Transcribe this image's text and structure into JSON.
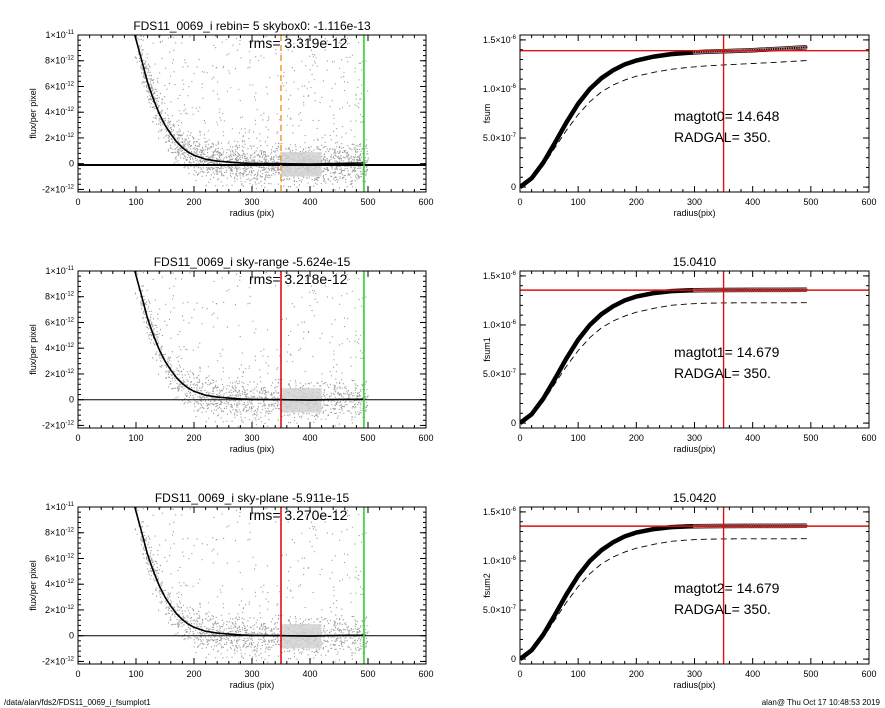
{
  "footer": {
    "left": "/data/alan/fds2/FDS11_0069_i_fsumplot1",
    "right": "alan@  Thu Oct 17 10:48:53 2019"
  },
  "colors": {
    "scatter": "#9a9a9a",
    "profile": "#000000",
    "orange": "#f0a040",
    "red": "#e01010",
    "green": "#30d030",
    "marker": "#c08080"
  },
  "chart_data": [
    {
      "type": "scatter",
      "panel": "left-1",
      "title": "FDS11_0069_i rebin= 5    skybox0: -1.116e-13",
      "annotation": "rms= 3.319e-12",
      "xlabel": "radius (pix)",
      "ylabel": "flux/per pixel",
      "xlim": [
        0,
        600
      ],
      "ylim": [
        -2.2e-12,
        1e-11
      ],
      "xticks": [
        "0",
        "100",
        "200",
        "300",
        "400",
        "500",
        "600"
      ],
      "yticks": [
        {
          "v": -2e-12,
          "m": "-2×10",
          "e": "-12"
        },
        {
          "v": 0,
          "m": "0",
          "e": ""
        },
        {
          "v": 2e-12,
          "m": "2×10",
          "e": "-12"
        },
        {
          "v": 4e-12,
          "m": "4×10",
          "e": "-12"
        },
        {
          "v": 6e-12,
          "m": "6×10",
          "e": "-12"
        },
        {
          "v": 8e-12,
          "m": "8×10",
          "e": "-12"
        },
        {
          "v": 1e-11,
          "m": "1×10",
          "e": "-11"
        }
      ],
      "vlines": [
        {
          "x": 350,
          "color": "orange",
          "dashed": true
        },
        {
          "x": 493,
          "color": "green",
          "dashed": false
        }
      ],
      "hline_y": -1e-13,
      "hline_bold": true,
      "profile": {
        "x": [
          98,
          110,
          120,
          130,
          140,
          150,
          160,
          170,
          180,
          190,
          200,
          220,
          240,
          260,
          280,
          300,
          350,
          400,
          450,
          493
        ],
        "y": [
          1e-11,
          8e-12,
          6.3e-12,
          5e-12,
          3.9e-12,
          3e-12,
          2.3e-12,
          1.7e-12,
          1.25e-12,
          9e-13,
          6.5e-13,
          3.5e-13,
          2e-13,
          1.2e-13,
          6e-14,
          2e-14,
          0.0,
          -3e-14,
          2e-14,
          5e-14
        ]
      }
    },
    {
      "type": "line",
      "panel": "right-1",
      "title": "",
      "xlabel": "radius(pix)",
      "ylabel": "fsum",
      "xlim": [
        0,
        600
      ],
      "ylim": [
        -5e-08,
        1.55e-06
      ],
      "xticks": [
        "0",
        "100",
        "200",
        "300",
        "400",
        "500",
        "600"
      ],
      "yticks": [
        {
          "v": 0,
          "m": "0",
          "e": ""
        },
        {
          "v": 5e-07,
          "m": "5.0×10",
          "e": "-7"
        },
        {
          "v": 1e-06,
          "m": "1.0×10",
          "e": "-6"
        },
        {
          "v": 1.5e-06,
          "m": "1.5×10",
          "e": "-6"
        }
      ],
      "annotations": [
        "magtot0=  14.648",
        "RADGAL=    350."
      ],
      "vline_x": 350,
      "hline_y": 1.39e-06,
      "x": [
        0,
        20,
        40,
        60,
        80,
        100,
        120,
        140,
        160,
        180,
        200,
        230,
        260,
        290,
        320,
        350,
        400,
        450,
        493
      ],
      "series": [
        {
          "name": "",
          "values": [
            0,
            9e-08,
            2.5e-07,
            4.5e-07,
            6.6e-07,
            8.5e-07,
            1e-06,
            1.11e-06,
            1.19e-06,
            1.25e-06,
            1.29e-06,
            1.33e-06,
            1.355e-06,
            1.37e-06,
            1.38e-06,
            1.385e-06,
            1.395e-06,
            1.41e-06,
            1.425e-06
          ],
          "style": "bold"
        },
        {
          "name": "",
          "values": [
            0,
            8e-08,
            2.2e-07,
            4e-07,
            5.8e-07,
            7.4e-07,
            8.7e-07,
            9.7e-07,
            1.04e-06,
            1.09e-06,
            1.13e-06,
            1.17e-06,
            1.2e-06,
            1.22e-06,
            1.235e-06,
            1.245e-06,
            1.26e-06,
            1.275e-06,
            1.29e-06
          ],
          "style": "dashed"
        }
      ]
    },
    {
      "type": "scatter",
      "panel": "left-2",
      "title": "FDS11_0069_i sky-range -5.624e-15",
      "annotation": "rms= 3.218e-12",
      "xlabel": "radius (pix)",
      "ylabel": "flux/per pixel",
      "xlim": [
        0,
        600
      ],
      "ylim": [
        -2.2e-12,
        1e-11
      ],
      "xticks": [
        "0",
        "100",
        "200",
        "300",
        "400",
        "500",
        "600"
      ],
      "yticks": [
        {
          "v": -2e-12,
          "m": "-2×10",
          "e": "-12"
        },
        {
          "v": 0,
          "m": "0",
          "e": ""
        },
        {
          "v": 2e-12,
          "m": "2×10",
          "e": "-12"
        },
        {
          "v": 4e-12,
          "m": "4×10",
          "e": "-12"
        },
        {
          "v": 6e-12,
          "m": "6×10",
          "e": "-12"
        },
        {
          "v": 8e-12,
          "m": "8×10",
          "e": "-12"
        },
        {
          "v": 1e-11,
          "m": "1×10",
          "e": "-11"
        }
      ],
      "vlines": [
        {
          "x": 350,
          "color": "red",
          "dashed": false
        },
        {
          "x": 493,
          "color": "green",
          "dashed": false
        }
      ],
      "hline_y": 0,
      "hline_bold": false,
      "profile": {
        "x": [
          98,
          110,
          120,
          130,
          140,
          150,
          160,
          170,
          180,
          190,
          200,
          220,
          240,
          260,
          280,
          300,
          350,
          400,
          450,
          493
        ],
        "y": [
          1e-11,
          8e-12,
          6.3e-12,
          5e-12,
          3.9e-12,
          3e-12,
          2.3e-12,
          1.7e-12,
          1.25e-12,
          9e-13,
          6.5e-13,
          3.5e-13,
          2e-13,
          1.2e-13,
          6e-14,
          2e-14,
          0.0,
          -3e-14,
          2e-14,
          3e-14
        ]
      }
    },
    {
      "type": "line",
      "panel": "right-2",
      "title": "15.0410",
      "xlabel": "radius(pix)",
      "ylabel": "fsum1",
      "xlim": [
        0,
        600
      ],
      "ylim": [
        -5e-08,
        1.55e-06
      ],
      "xticks": [
        "0",
        "100",
        "200",
        "300",
        "400",
        "500",
        "600"
      ],
      "yticks": [
        {
          "v": 0,
          "m": "0",
          "e": ""
        },
        {
          "v": 5e-07,
          "m": "5.0×10",
          "e": "-7"
        },
        {
          "v": 1e-06,
          "m": "1.0×10",
          "e": "-6"
        },
        {
          "v": 1.5e-06,
          "m": "1.5×10",
          "e": "-6"
        }
      ],
      "annotations": [
        "magtot1=  14.679",
        "RADGAL=    350."
      ],
      "vline_x": 350,
      "hline_y": 1.355e-06,
      "x": [
        0,
        20,
        40,
        60,
        80,
        100,
        120,
        140,
        160,
        180,
        200,
        230,
        260,
        290,
        320,
        350,
        400,
        450,
        493
      ],
      "series": [
        {
          "name": "",
          "values": [
            0,
            9e-08,
            2.5e-07,
            4.5e-07,
            6.6e-07,
            8.5e-07,
            1e-06,
            1.11e-06,
            1.19e-06,
            1.25e-06,
            1.29e-06,
            1.325e-06,
            1.345e-06,
            1.352e-06,
            1.355e-06,
            1.356e-06,
            1.357e-06,
            1.357e-06,
            1.358e-06
          ],
          "style": "bold"
        },
        {
          "name": "",
          "values": [
            0,
            8e-08,
            2.2e-07,
            4e-07,
            5.8e-07,
            7.4e-07,
            8.7e-07,
            9.7e-07,
            1.04e-06,
            1.09e-06,
            1.13e-06,
            1.17e-06,
            1.2e-06,
            1.215e-06,
            1.222e-06,
            1.225e-06,
            1.226e-06,
            1.226e-06,
            1.227e-06
          ],
          "style": "dashed"
        }
      ]
    },
    {
      "type": "scatter",
      "panel": "left-3",
      "title": "FDS11_0069_i sky-plane -5.911e-15",
      "annotation": "rms= 3.270e-12",
      "xlabel": "radius (pix)",
      "ylabel": "flux/per pixel",
      "xlim": [
        0,
        600
      ],
      "ylim": [
        -2.2e-12,
        1e-11
      ],
      "xticks": [
        "0",
        "100",
        "200",
        "300",
        "400",
        "500",
        "600"
      ],
      "yticks": [
        {
          "v": -2e-12,
          "m": "-2×10",
          "e": "-12"
        },
        {
          "v": 0,
          "m": "0",
          "e": ""
        },
        {
          "v": 2e-12,
          "m": "2×10",
          "e": "-12"
        },
        {
          "v": 4e-12,
          "m": "4×10",
          "e": "-12"
        },
        {
          "v": 6e-12,
          "m": "6×10",
          "e": "-12"
        },
        {
          "v": 8e-12,
          "m": "8×10",
          "e": "-12"
        },
        {
          "v": 1e-11,
          "m": "1×10",
          "e": "-11"
        }
      ],
      "vlines": [
        {
          "x": 350,
          "color": "red",
          "dashed": false
        },
        {
          "x": 493,
          "color": "green",
          "dashed": false
        }
      ],
      "hline_y": 0,
      "hline_bold": false,
      "profile": {
        "x": [
          98,
          110,
          120,
          130,
          140,
          150,
          160,
          170,
          180,
          190,
          200,
          220,
          240,
          260,
          280,
          300,
          350,
          400,
          450,
          493
        ],
        "y": [
          1e-11,
          8e-12,
          6.3e-12,
          5e-12,
          3.9e-12,
          3e-12,
          2.3e-12,
          1.7e-12,
          1.25e-12,
          9e-13,
          6.5e-13,
          3.5e-13,
          2e-13,
          1.2e-13,
          6e-14,
          2e-14,
          0.0,
          -3e-14,
          2e-14,
          3e-14
        ]
      }
    },
    {
      "type": "line",
      "panel": "right-3",
      "title": "15.0420",
      "xlabel": "radius(pix)",
      "ylabel": "fsum2",
      "xlim": [
        0,
        600
      ],
      "ylim": [
        -5e-08,
        1.55e-06
      ],
      "xticks": [
        "0",
        "100",
        "200",
        "300",
        "400",
        "500",
        "600"
      ],
      "yticks": [
        {
          "v": 0,
          "m": "0",
          "e": ""
        },
        {
          "v": 5e-07,
          "m": "5.0×10",
          "e": "-7"
        },
        {
          "v": 1e-06,
          "m": "1.0×10",
          "e": "-6"
        },
        {
          "v": 1.5e-06,
          "m": "1.5×10",
          "e": "-6"
        }
      ],
      "annotations": [
        "magtot2=  14.679",
        "RADGAL=    350."
      ],
      "vline_x": 350,
      "hline_y": 1.355e-06,
      "x": [
        0,
        20,
        40,
        60,
        80,
        100,
        120,
        140,
        160,
        180,
        200,
        230,
        260,
        290,
        320,
        350,
        400,
        450,
        493
      ],
      "series": [
        {
          "name": "",
          "values": [
            0,
            9e-08,
            2.5e-07,
            4.5e-07,
            6.6e-07,
            8.5e-07,
            1e-06,
            1.11e-06,
            1.19e-06,
            1.25e-06,
            1.29e-06,
            1.325e-06,
            1.345e-06,
            1.352e-06,
            1.355e-06,
            1.356e-06,
            1.357e-06,
            1.357e-06,
            1.358e-06
          ],
          "style": "bold"
        },
        {
          "name": "",
          "values": [
            0,
            8e-08,
            2.2e-07,
            4e-07,
            5.8e-07,
            7.4e-07,
            8.7e-07,
            9.7e-07,
            1.04e-06,
            1.09e-06,
            1.13e-06,
            1.17e-06,
            1.2e-06,
            1.215e-06,
            1.222e-06,
            1.225e-06,
            1.226e-06,
            1.226e-06,
            1.227e-06
          ],
          "style": "dashed"
        }
      ]
    }
  ]
}
